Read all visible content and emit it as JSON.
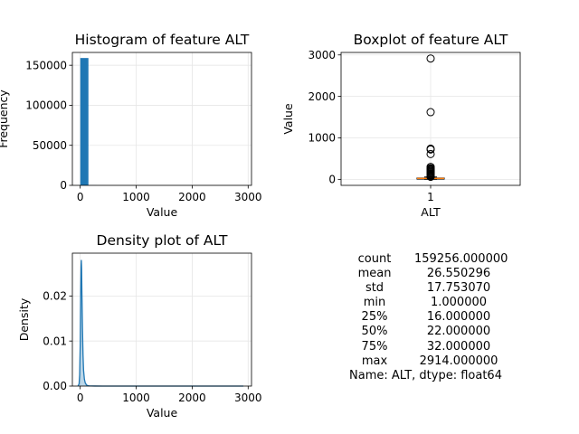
{
  "chart_data": [
    {
      "type": "bar",
      "title": "Histogram of feature ALT",
      "xlabel": "Value",
      "ylabel": "Frequency",
      "xlim": [
        -140,
        3060
      ],
      "ylim": [
        0,
        166000
      ],
      "xticks": [
        0,
        1000,
        2000,
        3000
      ],
      "yticks": [
        0,
        50000,
        100000,
        150000
      ],
      "bins_start": 1,
      "bin_width": 145.65,
      "values": [
        159050,
        150,
        30,
        10,
        5,
        3,
        2,
        1,
        1,
        0,
        1,
        0,
        0,
        0,
        0,
        0,
        0,
        0,
        0,
        1
      ],
      "grid": true,
      "color": "#1f77b4"
    },
    {
      "type": "box",
      "title": "Boxplot of feature ALT",
      "xlabel": "ALT",
      "ylabel": "Value",
      "categories": [
        "1"
      ],
      "ylim": [
        -145,
        3060
      ],
      "yticks": [
        0,
        1000,
        2000,
        3000
      ],
      "box": {
        "min": 1,
        "q1": 16,
        "median": 22,
        "q3": 32,
        "whisker_high": 56
      },
      "outliers": [
        2914,
        1620,
        740,
        720,
        610,
        300,
        270,
        250,
        230,
        210,
        190,
        170,
        150,
        130,
        110,
        95,
        80,
        70,
        60
      ],
      "grid": true,
      "median_color": "#ff7f0e"
    },
    {
      "type": "area",
      "title": "Density plot of ALT",
      "xlabel": "Value",
      "ylabel": "Density",
      "xlim": [
        -140,
        3060
      ],
      "ylim": [
        0,
        0.0295
      ],
      "xticks": [
        0,
        1000,
        2000,
        3000
      ],
      "yticks": [
        0,
        0.01,
        0.02
      ],
      "x": [
        -40,
        -20,
        -10,
        0,
        5,
        10,
        15,
        20,
        25,
        30,
        40,
        50,
        60,
        75,
        90,
        110,
        130,
        160,
        200,
        260,
        400,
        2914
      ],
      "y": [
        0,
        0.0005,
        0.0025,
        0.009,
        0.016,
        0.022,
        0.0265,
        0.028,
        0.026,
        0.021,
        0.013,
        0.007,
        0.0035,
        0.0015,
        0.0007,
        0.0003,
        0.0001,
        5e-05,
        2e-05,
        1e-05,
        0,
        0
      ],
      "grid": true,
      "color": "#1f77b4"
    }
  ],
  "stats": {
    "rows": [
      {
        "key": "count",
        "value": "159256.000000"
      },
      {
        "key": "mean",
        "value": "26.550296"
      },
      {
        "key": "std",
        "value": "17.753070"
      },
      {
        "key": "min",
        "value": "1.000000"
      },
      {
        "key": "25%",
        "value": "16.000000"
      },
      {
        "key": "50%",
        "value": "22.000000"
      },
      {
        "key": "75%",
        "value": "32.000000"
      },
      {
        "key": "max",
        "value": "2914.000000"
      }
    ],
    "footer": "Name: ALT, dtype: float64"
  }
}
